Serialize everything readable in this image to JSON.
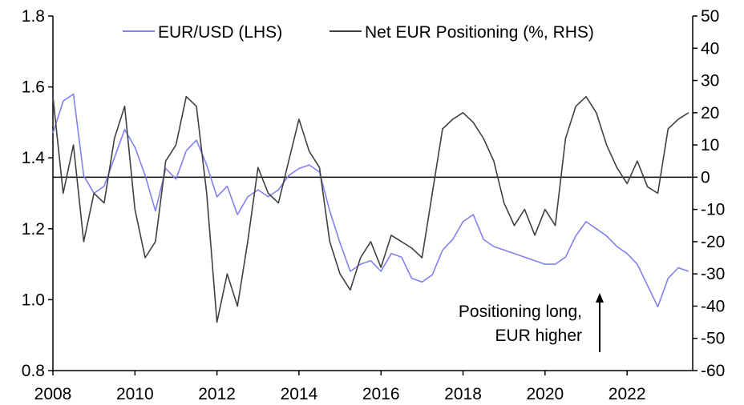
{
  "chart_data": {
    "type": "line",
    "title": "",
    "x_range": [
      2008.0,
      2023.6
    ],
    "x_ticks": [
      "2008",
      "2010",
      "2012",
      "2014",
      "2016",
      "2018",
      "2020",
      "2022"
    ],
    "left_axis": {
      "label": "",
      "range": [
        0.8,
        1.8
      ],
      "ticks": [
        "1.8",
        "1.6",
        "1.4",
        "1.2",
        "1.0",
        "0.8"
      ]
    },
    "right_axis": {
      "label": "",
      "range": [
        -60,
        50
      ],
      "ticks": [
        "50",
        "40",
        "30",
        "20",
        "10",
        "0",
        "-10",
        "-20",
        "-30",
        "-40",
        "-50",
        "-60"
      ]
    },
    "zero_line": {
      "axis": "right",
      "value": 0
    },
    "legend": {
      "placement": "top"
    },
    "series": [
      {
        "name": "EUR/USD (LHS)",
        "axis": "left",
        "color": "#8080f0",
        "x": [
          2008.0,
          2008.25,
          2008.5,
          2008.75,
          2009.0,
          2009.25,
          2009.5,
          2009.75,
          2010.0,
          2010.25,
          2010.5,
          2010.75,
          2011.0,
          2011.25,
          2011.5,
          2011.75,
          2012.0,
          2012.25,
          2012.5,
          2012.75,
          2013.0,
          2013.25,
          2013.5,
          2013.75,
          2014.0,
          2014.25,
          2014.5,
          2014.75,
          2015.0,
          2015.25,
          2015.5,
          2015.75,
          2016.0,
          2016.25,
          2016.5,
          2016.75,
          2017.0,
          2017.25,
          2017.5,
          2017.75,
          2018.0,
          2018.25,
          2018.5,
          2018.75,
          2019.0,
          2019.25,
          2019.5,
          2019.75,
          2020.0,
          2020.25,
          2020.5,
          2020.75,
          2021.0,
          2021.25,
          2021.5,
          2021.75,
          2022.0,
          2022.25,
          2022.5,
          2022.75,
          2023.0,
          2023.25,
          2023.5
        ],
        "values": [
          1.47,
          1.56,
          1.58,
          1.35,
          1.3,
          1.32,
          1.4,
          1.48,
          1.43,
          1.35,
          1.25,
          1.37,
          1.34,
          1.42,
          1.45,
          1.38,
          1.29,
          1.32,
          1.24,
          1.29,
          1.31,
          1.29,
          1.31,
          1.35,
          1.37,
          1.38,
          1.36,
          1.25,
          1.16,
          1.08,
          1.1,
          1.11,
          1.08,
          1.13,
          1.12,
          1.06,
          1.05,
          1.07,
          1.14,
          1.17,
          1.22,
          1.24,
          1.17,
          1.15,
          1.14,
          1.13,
          1.12,
          1.11,
          1.1,
          1.1,
          1.12,
          1.18,
          1.22,
          1.2,
          1.18,
          1.15,
          1.13,
          1.1,
          1.04,
          0.98,
          1.06,
          1.09,
          1.08
        ]
      },
      {
        "name": "Net EUR Positioning (%, RHS)",
        "axis": "right",
        "color": "#404040",
        "x": [
          2008.0,
          2008.25,
          2008.5,
          2008.75,
          2009.0,
          2009.25,
          2009.5,
          2009.75,
          2010.0,
          2010.25,
          2010.5,
          2010.75,
          2011.0,
          2011.25,
          2011.5,
          2011.75,
          2012.0,
          2012.25,
          2012.5,
          2012.75,
          2013.0,
          2013.25,
          2013.5,
          2013.75,
          2014.0,
          2014.25,
          2014.5,
          2014.75,
          2015.0,
          2015.25,
          2015.5,
          2015.75,
          2016.0,
          2016.25,
          2016.5,
          2016.75,
          2017.0,
          2017.25,
          2017.5,
          2017.75,
          2018.0,
          2018.25,
          2018.5,
          2018.75,
          2019.0,
          2019.25,
          2019.5,
          2019.75,
          2020.0,
          2020.25,
          2020.5,
          2020.75,
          2021.0,
          2021.25,
          2021.5,
          2021.75,
          2022.0,
          2022.25,
          2022.5,
          2022.75,
          2023.0,
          2023.25,
          2023.5
        ],
        "values": [
          25,
          -5,
          10,
          -20,
          -5,
          -8,
          12,
          22,
          -10,
          -25,
          -20,
          5,
          10,
          25,
          22,
          -5,
          -45,
          -30,
          -40,
          -20,
          3,
          -5,
          -8,
          5,
          18,
          8,
          3,
          -20,
          -30,
          -35,
          -25,
          -20,
          -28,
          -18,
          -20,
          -22,
          -25,
          -5,
          15,
          18,
          20,
          17,
          12,
          5,
          -8,
          -15,
          -10,
          -18,
          -10,
          -15,
          12,
          22,
          25,
          20,
          10,
          3,
          -2,
          5,
          -3,
          -5,
          15,
          18,
          20
        ]
      }
    ],
    "annotations": [
      {
        "text": [
          "Positioning long,",
          "EUR higher"
        ],
        "arrow": "up",
        "at_x": 2021.6
      }
    ]
  }
}
